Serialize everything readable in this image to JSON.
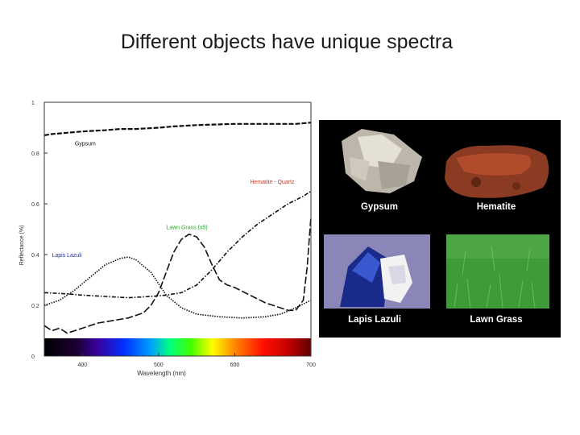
{
  "slide": {
    "title": "Different objects have unique spectra"
  },
  "chart_data": {
    "type": "line",
    "title": "",
    "xlabel": "Wavelength (nm)",
    "ylabel": "Reflectance (%)",
    "xlim": [
      350,
      700
    ],
    "ylim": [
      0,
      1
    ],
    "x_ticks": [
      400,
      500,
      600,
      700
    ],
    "y_ticks": [
      {
        "value": 0,
        "label": "0"
      },
      {
        "value": 0.2,
        "label": "0.2"
      },
      {
        "value": 0.4,
        "label": "0.4"
      },
      {
        "value": 0.6,
        "label": "0.6"
      },
      {
        "value": 0.8,
        "label": "0.8"
      },
      {
        "value": 1,
        "label": "1"
      }
    ],
    "grid": false,
    "legend": "inline labels",
    "spectrum_band": {
      "y_range": [
        0,
        0.07
      ]
    },
    "series": [
      {
        "name": "Gypsum",
        "color": "#111111",
        "dash": "dense-dash",
        "label_at": {
          "x": 390,
          "y": 0.83
        },
        "x": [
          350,
          360,
          380,
          400,
          430,
          450,
          470,
          500,
          520,
          550,
          600,
          650,
          680,
          700
        ],
        "y": [
          0.87,
          0.875,
          0.88,
          0.885,
          0.89,
          0.895,
          0.895,
          0.9,
          0.905,
          0.91,
          0.915,
          0.915,
          0.915,
          0.92
        ]
      },
      {
        "name": "Hematite - Quartz",
        "color": "#c0392b",
        "dash": "dash-dot",
        "label_at": {
          "x": 620,
          "y": 0.68
        },
        "x": [
          350,
          380,
          400,
          430,
          460,
          490,
          510,
          530,
          550,
          570,
          590,
          610,
          630,
          650,
          670,
          690,
          700
        ],
        "y": [
          0.25,
          0.245,
          0.24,
          0.235,
          0.23,
          0.235,
          0.24,
          0.25,
          0.28,
          0.34,
          0.41,
          0.47,
          0.52,
          0.56,
          0.6,
          0.63,
          0.65
        ]
      },
      {
        "name": "Lawn Grass (x5)",
        "color": "#22aa22",
        "dash": "long-dash",
        "label_at": {
          "x": 510,
          "y": 0.5
        },
        "x": [
          350,
          360,
          370,
          380,
          400,
          420,
          440,
          460,
          480,
          490,
          500,
          510,
          520,
          530,
          540,
          550,
          560,
          570,
          580,
          590,
          600,
          620,
          640,
          660,
          670,
          680,
          690,
          695,
          700
        ],
        "y": [
          0.12,
          0.1,
          0.11,
          0.09,
          0.11,
          0.13,
          0.14,
          0.15,
          0.17,
          0.2,
          0.25,
          0.33,
          0.41,
          0.46,
          0.48,
          0.47,
          0.43,
          0.36,
          0.3,
          0.28,
          0.27,
          0.24,
          0.21,
          0.19,
          0.18,
          0.18,
          0.22,
          0.35,
          0.55
        ]
      },
      {
        "name": "Lapis Lazuli",
        "color": "#2233aa",
        "dash": "dotted",
        "label_at": {
          "x": 360,
          "y": 0.39
        },
        "x": [
          350,
          370,
          390,
          410,
          430,
          450,
          460,
          470,
          490,
          510,
          530,
          550,
          580,
          610,
          640,
          660,
          680,
          700
        ],
        "y": [
          0.2,
          0.22,
          0.26,
          0.31,
          0.36,
          0.385,
          0.39,
          0.38,
          0.33,
          0.24,
          0.19,
          0.165,
          0.155,
          0.15,
          0.155,
          0.165,
          0.19,
          0.22
        ]
      }
    ]
  },
  "photos": {
    "panel_bg": "#000000",
    "items": [
      {
        "name": "gypsum",
        "label": "Gypsum"
      },
      {
        "name": "hematite",
        "label": "Hematite"
      },
      {
        "name": "lapis",
        "label": "Lapis Lazuli"
      },
      {
        "name": "grass",
        "label": "Lawn Grass"
      }
    ]
  }
}
